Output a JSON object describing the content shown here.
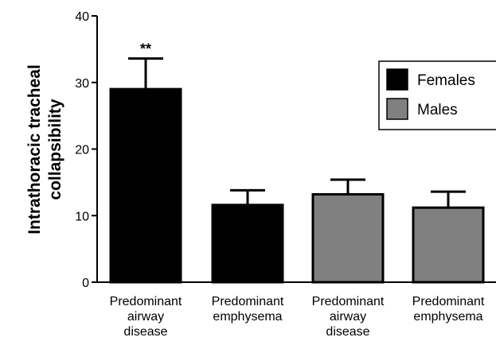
{
  "chart_data": {
    "type": "bar",
    "ylabel": "Intrathoracic tracheal collapsibility",
    "ylabel_lines": [
      "Intrathoracic tracheal",
      "collapsibility"
    ],
    "ylim": [
      0,
      40
    ],
    "yticks": [
      0,
      10,
      20,
      30,
      40
    ],
    "categories": [
      [
        "Predominant",
        "airway",
        "disease"
      ],
      [
        "Predominant",
        "emphysema"
      ],
      [
        "Predominant",
        "airway",
        "disease"
      ],
      [
        "Predominant",
        "emphysema"
      ]
    ],
    "bars": [
      {
        "group": "Females",
        "value": 29.0,
        "error": 4.6,
        "annotation": "**"
      },
      {
        "group": "Females",
        "value": 11.6,
        "error": 2.2,
        "annotation": ""
      },
      {
        "group": "Males",
        "value": 13.2,
        "error": 2.2,
        "annotation": ""
      },
      {
        "group": "Males",
        "value": 11.2,
        "error": 2.4,
        "annotation": ""
      }
    ],
    "series": [
      {
        "name": "Females",
        "color": "#000000"
      },
      {
        "name": "Males",
        "color": "#808080"
      }
    ],
    "legend": {
      "placement": "top-right",
      "entries": [
        "Females",
        "Males"
      ]
    },
    "grid": false
  }
}
